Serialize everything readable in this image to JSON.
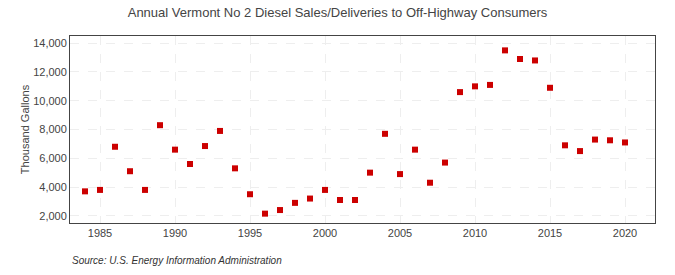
{
  "chart_data": {
    "type": "scatter",
    "title": "Annual Vermont No 2 Diesel Sales/Deliveries to Off-Highway Consumers",
    "ylabel": "Thousand Gallons",
    "annotations": [
      "Source: U.S. Energy Information Administration"
    ],
    "x": [
      1984,
      1985,
      1986,
      1987,
      1988,
      1989,
      1990,
      1991,
      1992,
      1993,
      1994,
      1995,
      1996,
      1997,
      1998,
      1999,
      2000,
      2001,
      2002,
      2003,
      2004,
      2005,
      2006,
      2007,
      2008,
      2009,
      2010,
      2011,
      2012,
      2013,
      2014,
      2015,
      2016,
      2017,
      2018,
      2019,
      2020
    ],
    "values": [
      3700,
      3800,
      6800,
      5100,
      3800,
      8300,
      6600,
      5600,
      6850,
      7900,
      5300,
      3500,
      2150,
      2400,
      2900,
      3200,
      3800,
      3100,
      3100,
      5000,
      7700,
      4900,
      6600,
      4300,
      5700,
      10600,
      11000,
      11100,
      13500,
      12900,
      12800,
      10900,
      6900,
      6500,
      7300,
      7250,
      7100
    ],
    "color": "#cc0000",
    "marker": "square",
    "xlim": [
      1983,
      2022
    ],
    "xticks": [
      1985,
      1990,
      1995,
      2000,
      2005,
      2010,
      2015,
      2020
    ],
    "ylim": [
      1500,
      14500
    ],
    "yticks": [
      {
        "value": 2000,
        "label": "2,000"
      },
      {
        "value": 4000,
        "label": "4,000"
      },
      {
        "value": 6000,
        "label": "6,000"
      },
      {
        "value": 8000,
        "label": "8,000"
      },
      {
        "value": 10000,
        "label": "10,000"
      },
      {
        "value": 12000,
        "label": "12,000"
      },
      {
        "value": 14000,
        "label": "14,000"
      }
    ],
    "grid": true
  }
}
